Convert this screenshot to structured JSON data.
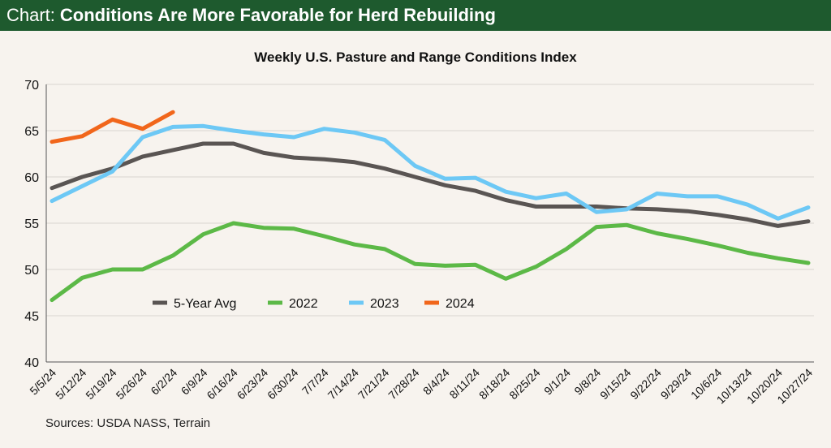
{
  "banner": {
    "label": "Chart:",
    "title": "Conditions Are More Favorable for Herd Rebuilding"
  },
  "source": "Sources: USDA NASS, Terrain",
  "colors": {
    "banner_bg": "#1e5a2e",
    "avg": "#5a5553",
    "y2022": "#5cb947",
    "y2023": "#6dc8f5",
    "y2024": "#f1661b"
  },
  "chart_data": {
    "type": "line",
    "title": "Weekly U.S. Pasture and Range Conditions Index",
    "xlabel": "",
    "ylabel": "",
    "ylim": [
      40,
      70
    ],
    "yticks": [
      40,
      45,
      50,
      55,
      60,
      65,
      70
    ],
    "categories": [
      "5/5/24",
      "5/12/24",
      "5/19/24",
      "5/26/24",
      "6/2/24",
      "6/9/24",
      "6/16/24",
      "6/23/24",
      "6/30/24",
      "7/7/24",
      "7/14/24",
      "7/21/24",
      "7/28/24",
      "8/4/24",
      "8/11/24",
      "8/18/24",
      "8/25/24",
      "9/1/24",
      "9/8/24",
      "9/15/24",
      "9/22/24",
      "9/29/24",
      "10/6/24",
      "10/13/24",
      "10/20/24",
      "10/27/24"
    ],
    "legend_position": "lower-left",
    "series": [
      {
        "name": "5-Year Avg",
        "color": "#5a5553",
        "values": [
          58.8,
          60.0,
          60.9,
          62.2,
          62.9,
          63.6,
          63.6,
          62.6,
          62.1,
          61.9,
          61.6,
          60.9,
          60.0,
          59.1,
          58.5,
          57.5,
          56.8,
          56.8,
          56.8,
          56.6,
          56.5,
          56.3,
          55.9,
          55.4,
          54.7,
          55.2
        ]
      },
      {
        "name": "2022",
        "color": "#5cb947",
        "values": [
          46.7,
          49.1,
          50.0,
          50.0,
          51.5,
          53.8,
          55.0,
          54.5,
          54.4,
          53.6,
          52.7,
          52.2,
          50.6,
          50.4,
          50.5,
          49.0,
          50.3,
          52.2,
          54.6,
          54.8,
          53.9,
          53.3,
          52.6,
          51.8,
          51.2,
          50.7
        ]
      },
      {
        "name": "2023",
        "color": "#6dc8f5",
        "values": [
          57.4,
          59.0,
          60.6,
          64.3,
          65.4,
          65.5,
          65.0,
          64.6,
          64.3,
          65.2,
          64.8,
          64.0,
          61.2,
          59.8,
          59.9,
          58.4,
          57.7,
          58.2,
          56.2,
          56.5,
          58.2,
          57.9,
          57.9,
          57.0,
          55.5,
          56.7
        ]
      },
      {
        "name": "2024",
        "color": "#f1661b",
        "values": [
          63.8,
          64.4,
          66.2,
          65.2,
          67.0,
          null,
          null,
          null,
          null,
          null,
          null,
          null,
          null,
          null,
          null,
          null,
          null,
          null,
          null,
          null,
          null,
          null,
          null,
          null,
          null,
          null
        ]
      }
    ]
  }
}
